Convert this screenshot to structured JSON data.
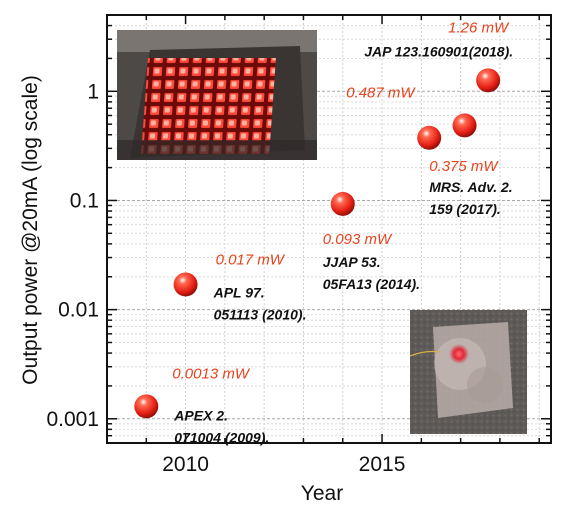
{
  "chart_data": {
    "type": "scatter",
    "xlabel": "Year",
    "ylabel": "Output power @20mA (log scale)",
    "yscale": "log",
    "xlim": [
      2008,
      2019.3
    ],
    "ylim": [
      0.0006,
      5
    ],
    "x_ticks": [
      {
        "value": 2010,
        "label": "2010"
      },
      {
        "value": 2015,
        "label": "2015"
      }
    ],
    "y_ticks": [
      {
        "value": 0.001,
        "label": "0.001"
      },
      {
        "value": 0.01,
        "label": "0.01"
      },
      {
        "value": 0.1,
        "label": "0.1"
      },
      {
        "value": 1,
        "label": "1"
      }
    ],
    "grid": true,
    "marker_color": "#e51f14",
    "value_label_color": "#e8431d",
    "points": [
      {
        "x": 2009,
        "y": 0.0013,
        "value_label": "0.0013 mW",
        "ref": [
          "APEX 2.",
          "071004 (2009)."
        ]
      },
      {
        "x": 2010,
        "y": 0.017,
        "value_label": "0.017 mW",
        "ref": [
          "APL 97.",
          "051113 (2010)."
        ]
      },
      {
        "x": 2014,
        "y": 0.093,
        "value_label": "0.093 mW",
        "ref": [
          "JJAP 53.",
          "05FA13 (2014)."
        ]
      },
      {
        "x": 2016.2,
        "y": 0.375,
        "value_label": "0.375 mW",
        "ref": [
          "MRS. Adv. 2.",
          "159 (2017)."
        ]
      },
      {
        "x": 2017.1,
        "y": 0.487,
        "value_label": "0.487 mW",
        "ref": []
      },
      {
        "x": 2017.7,
        "y": 1.26,
        "value_label": "1.26 mW",
        "ref": [
          "JAP 123.160901(2018)."
        ]
      }
    ]
  },
  "photos": {
    "led_array_photo": "red-led-array-photo",
    "single_led_photo": "glowing-flexible-led-photo"
  }
}
